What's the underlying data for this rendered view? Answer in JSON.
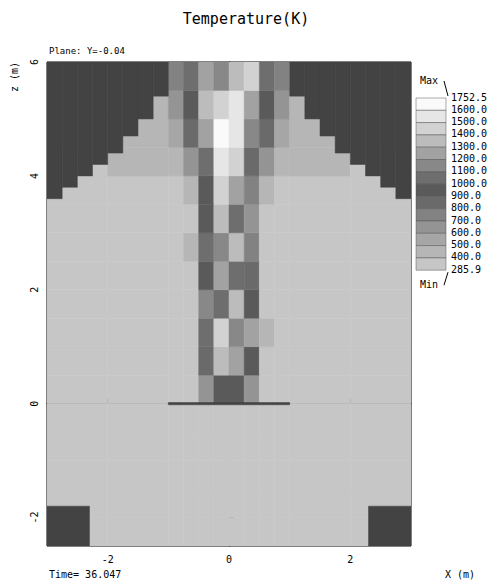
{
  "chart_data": {
    "type": "heatmap",
    "title": "Temperature(K)",
    "annotations": [
      "Plane: Y=-0.04",
      "Time= 36.047"
    ],
    "x_label": "X (m)",
    "y_label": "z (m)",
    "xlim": [
      -3,
      3
    ],
    "xticks": [
      -2,
      0,
      2
    ],
    "ylim": [
      -2.5,
      6
    ],
    "yticks": [
      -2,
      0,
      2,
      4,
      6
    ],
    "grid": false,
    "x_edges": [
      -3,
      -2,
      -1,
      -0.75,
      -0.5,
      -0.25,
      0,
      0.25,
      0.5,
      0.75,
      1,
      2,
      3
    ],
    "z_edges": [
      -2.5,
      -2,
      -1.5,
      -1,
      -0.5,
      0,
      0.5,
      1,
      1.5,
      2,
      2.5,
      3,
      3.5,
      4,
      4.5,
      5,
      5.5,
      6
    ],
    "cells": [
      [
        294,
        294,
        294,
        294,
        294,
        294,
        294,
        294,
        294,
        294,
        294,
        294
      ],
      [
        294,
        294,
        294,
        294,
        294,
        294,
        294,
        294,
        294,
        294,
        294,
        294
      ],
      [
        294,
        294,
        294,
        294,
        294,
        294,
        294,
        294,
        294,
        294,
        294,
        294
      ],
      [
        294,
        294,
        294,
        294,
        294,
        294,
        294,
        294,
        294,
        294,
        294,
        294
      ],
      [
        294,
        294,
        294,
        294,
        294,
        294,
        294,
        294,
        294,
        294,
        294,
        294
      ],
      [
        294,
        294,
        294,
        300,
        600,
        900,
        900,
        600,
        300,
        294,
        294,
        294
      ],
      [
        294,
        294,
        294,
        320,
        800,
        1300,
        1250,
        900,
        340,
        294,
        294,
        294
      ],
      [
        294,
        294,
        294,
        350,
        1000,
        1400,
        1100,
        1200,
        400,
        294,
        294,
        294
      ],
      [
        294,
        294,
        294,
        380,
        1100,
        1000,
        1300,
        900,
        380,
        294,
        294,
        294
      ],
      [
        294,
        294,
        294,
        360,
        900,
        1200,
        1000,
        800,
        350,
        294,
        294,
        294
      ],
      [
        294,
        294,
        300,
        400,
        1000,
        1100,
        1300,
        700,
        320,
        294,
        294,
        294
      ],
      [
        295,
        295,
        300,
        380,
        900,
        1300,
        1000,
        600,
        330,
        300,
        295,
        295
      ],
      [
        330,
        340,
        360,
        450,
        900,
        1400,
        1200,
        700,
        450,
        360,
        340,
        330
      ],
      [
        380,
        400,
        450,
        600,
        1000,
        1500,
        1400,
        800,
        600,
        450,
        400,
        380
      ],
      [
        400,
        420,
        500,
        800,
        1200,
        1600,
        1500,
        1100,
        800,
        500,
        420,
        400
      ],
      [
        420,
        450,
        600,
        900,
        1300,
        1400,
        1500,
        1200,
        900,
        600,
        450,
        420
      ],
      [
        420,
        450,
        700,
        1000,
        1200,
        1100,
        1300,
        1400,
        1000,
        700,
        450,
        420
      ]
    ],
    "obstructions": [
      [
        -3,
        -2.75,
        3.6,
        6
      ],
      [
        -2.75,
        -2.5,
        3.8,
        6
      ],
      [
        -2.5,
        -2.25,
        4.0,
        6
      ],
      [
        -2.25,
        -2,
        4.2,
        6
      ],
      [
        -2,
        -1.75,
        4.4,
        6
      ],
      [
        -1.75,
        -1.5,
        4.7,
        6
      ],
      [
        -1.5,
        -1.25,
        5.0,
        6
      ],
      [
        -1.25,
        -1,
        5.4,
        6
      ],
      [
        1,
        1.25,
        5.4,
        6
      ],
      [
        1.25,
        1.5,
        5.0,
        6
      ],
      [
        1.5,
        1.75,
        4.7,
        6
      ],
      [
        1.75,
        2,
        4.4,
        6
      ],
      [
        2,
        2.25,
        4.2,
        6
      ],
      [
        2.25,
        2.5,
        4.0,
        6
      ],
      [
        2.5,
        2.75,
        3.8,
        6
      ],
      [
        2.75,
        3,
        3.6,
        6
      ],
      [
        -3,
        -2.3,
        -2.5,
        -1.8
      ],
      [
        2.3,
        3,
        -2.5,
        -1.8
      ],
      [
        -1,
        1,
        -0.02,
        0.02
      ]
    ],
    "colorbar": {
      "range": [
        285.9,
        1752.5
      ],
      "max_label": "Max",
      "min_label": "Min",
      "ticks": [
        1752.5,
        {
          "value": 1600,
          "label": "1600.0"
        },
        {
          "value": 1500,
          "label": "1500.0"
        },
        {
          "value": 1400,
          "label": "1400.0"
        },
        {
          "value": 1300,
          "label": "1300.0"
        },
        {
          "value": 1200,
          "label": "1200.0"
        },
        {
          "value": 1100,
          "label": "1100.0"
        },
        {
          "value": 1000,
          "label": "1000.0"
        },
        {
          "value": 900,
          "label": "900.0"
        },
        {
          "value": 800,
          "label": "800.0"
        },
        {
          "value": 700,
          "label": "700.0"
        },
        {
          "value": 600,
          "label": "600.0"
        },
        {
          "value": 500,
          "label": "500.0"
        },
        {
          "value": 400,
          "label": "400.0"
        },
        285.9
      ]
    }
  }
}
